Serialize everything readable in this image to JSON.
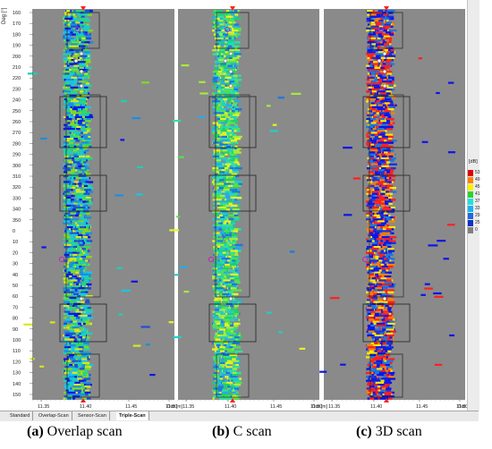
{
  "panels": [
    {
      "id": "overlap",
      "palette": [
        "#0a16e8",
        "#1e50d6",
        "#1b8fe0",
        "#18c6e6",
        "#1ed0b4",
        "#2ed86a",
        "#7edc1e",
        "#d8e81a"
      ]
    },
    {
      "id": "cscan",
      "palette": [
        "#20d0c8",
        "#30e0a0",
        "#1fd06a",
        "#56e04a",
        "#a6ec3a",
        "#e6f41e",
        "#2aa8e4",
        "#1a78e0"
      ]
    },
    {
      "id": "3d",
      "palette": [
        "#0a16e8",
        "#1634e0",
        "#ff2020",
        "#ff2020",
        "#ffe800",
        "#1a78e0",
        "#ff8000",
        "#0a16e8"
      ]
    }
  ],
  "depth_ticks": [
    "160",
    "170",
    "180",
    "190",
    "200",
    "210",
    "220",
    "230",
    "240",
    "250",
    "260",
    "270",
    "280",
    "290",
    "300",
    "310",
    "320",
    "330",
    "340",
    "350",
    "0",
    "10",
    "20",
    "30",
    "40",
    "50",
    "60",
    "70",
    "80",
    "90",
    "100",
    "110",
    "120",
    "130",
    "140",
    "150"
  ],
  "y_axis_title": "Deg [°]",
  "x_ticks": [
    "11.35",
    "11.40",
    "11.45",
    "11.50"
  ],
  "x_axis_unit": "Dist [m]",
  "tabs": [
    {
      "label": "Standard",
      "active": false
    },
    {
      "label": "Overlap-Scan",
      "active": false
    },
    {
      "label": "Sensor-Scan",
      "active": false
    },
    {
      "label": "Triple-Scan",
      "active": true
    }
  ],
  "legend": {
    "title": "[dB]",
    "items": [
      {
        "label": "53",
        "color": "#e00000"
      },
      {
        "label": "49",
        "color": "#ff8000"
      },
      {
        "label": "45",
        "color": "#f8f000"
      },
      {
        "label": "41",
        "color": "#30d030"
      },
      {
        "label": "37",
        "color": "#20e0e0"
      },
      {
        "label": "33",
        "color": "#18b0f0"
      },
      {
        "label": "29",
        "color": "#1a6ae0"
      },
      {
        "label": "25",
        "color": "#1030c8"
      },
      {
        "label": "0",
        "color": "#808080"
      }
    ]
  },
  "captions": [
    {
      "letter": "(a)",
      "text": " Overlap scan"
    },
    {
      "letter": "(b)",
      "text": " C scan"
    },
    {
      "letter": "(c)",
      "text": " 3D scan"
    }
  ]
}
